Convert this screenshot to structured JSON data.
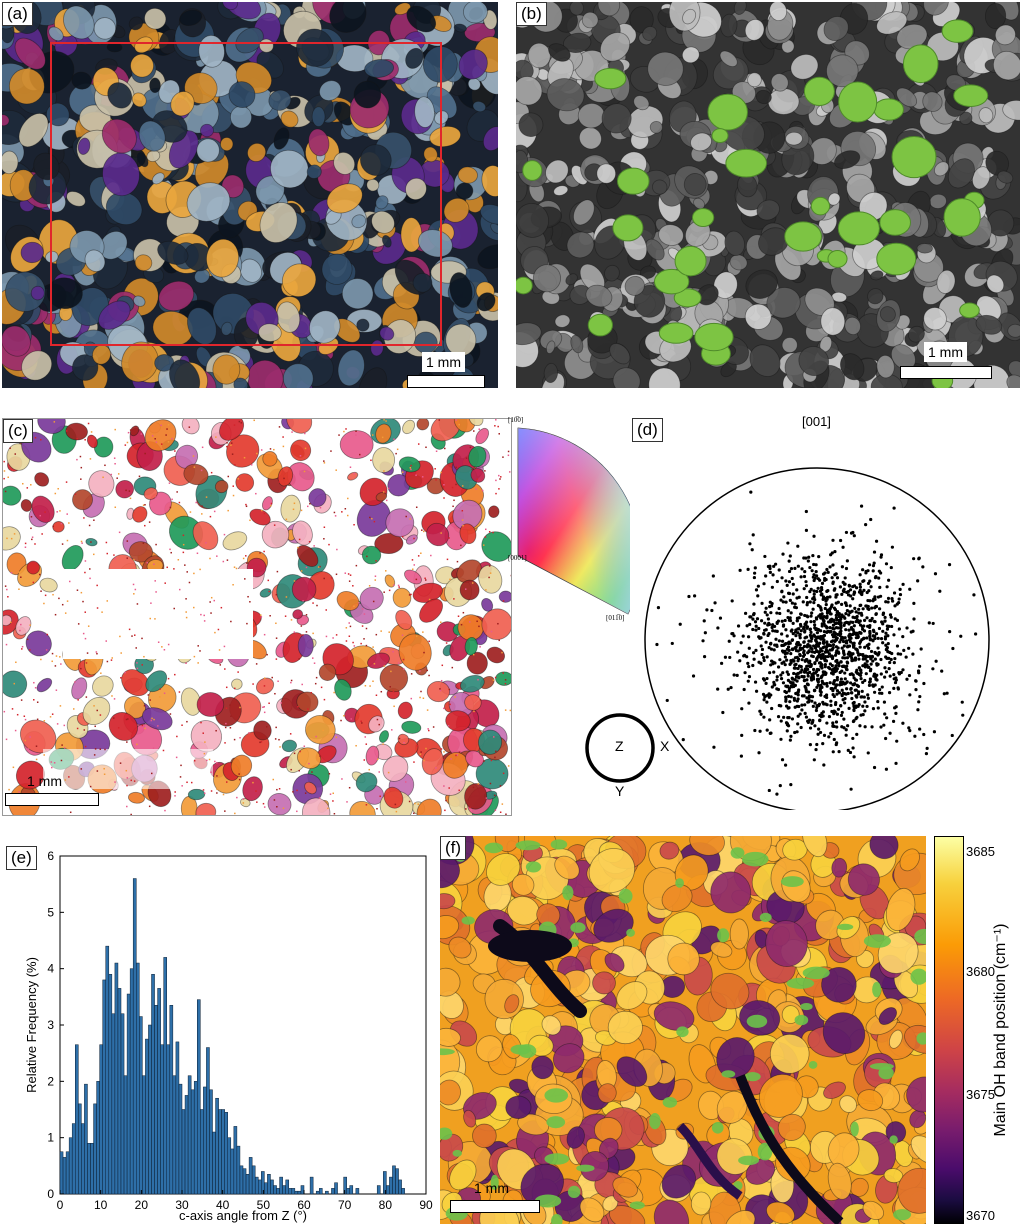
{
  "panels": {
    "a": {
      "label": "(a)",
      "scale": "1 mm"
    },
    "b": {
      "label": "(b)",
      "scale": "1 mm"
    },
    "c": {
      "label": "(c)",
      "scale": "1 mm",
      "ipf_key": {
        "top": "[10̅0]",
        "left": "[0001]",
        "right": "[011̅0]"
      }
    },
    "d": {
      "label": "(d)",
      "title": "[001]",
      "reference": {
        "center": "Z",
        "right": "X",
        "bottom": "Y"
      }
    },
    "e": {
      "label": "(e)"
    },
    "f": {
      "label": "(f)",
      "scale": "1 mm",
      "colorbar": {
        "label": "Main OH band position (cm⁻¹)",
        "ticks": [
          "3685",
          "3680",
          "3675",
          "3670"
        ]
      }
    }
  },
  "chart_data": {
    "type": "bar",
    "xlabel": "c-axis angle from Z (°)",
    "ylabel": "Relative Frequency (%)",
    "xlim": [
      0,
      90
    ],
    "ylim": [
      0,
      6
    ],
    "xticks": [
      "0",
      "10",
      "20",
      "30",
      "40",
      "50",
      "60",
      "70",
      "80",
      "90"
    ],
    "yticks": [
      "0",
      "1",
      "2",
      "3",
      "4",
      "5",
      "6"
    ],
    "bin_width": 0.75,
    "bin_start": 0,
    "values": [
      0.75,
      0.65,
      0.75,
      1.0,
      1.25,
      2.65,
      1.6,
      1.25,
      1.95,
      0.9,
      0.9,
      1.6,
      2.0,
      2.65,
      3.8,
      4.4,
      3.9,
      3.2,
      4.1,
      3.65,
      3.2,
      2.1,
      3.55,
      4.0,
      5.6,
      4.1,
      3.15,
      2.1,
      2.75,
      3.0,
      3.9,
      3.35,
      3.65,
      2.65,
      4.2,
      2.65,
      3.35,
      2.1,
      2.7,
      1.95,
      1.5,
      1.75,
      2.1,
      1.85,
      2.0,
      3.45,
      1.5,
      1.9,
      2.6,
      1.85,
      1.1,
      1.7,
      1.5,
      1.5,
      1.45,
      1.0,
      0.8,
      1.2,
      0.85,
      0.5,
      0.45,
      0.35,
      0.65,
      0.5,
      0.3,
      0.25,
      0.4,
      0.2,
      0.35,
      0.25,
      0.15,
      0.1,
      0.3,
      0.15,
      0.25,
      0.1,
      0.1,
      0.05,
      0.05,
      0.15,
      0,
      0,
      0.3,
      0,
      0.05,
      0.1,
      0,
      0.05,
      0,
      0.1,
      0.2,
      0,
      0,
      0.3,
      0.1,
      0.15,
      0,
      0.1,
      0,
      0,
      0,
      0,
      0,
      0,
      0.15,
      0,
      0.4,
      0.15,
      0.3,
      0.5,
      0.45,
      0.25,
      0.1
    ]
  }
}
